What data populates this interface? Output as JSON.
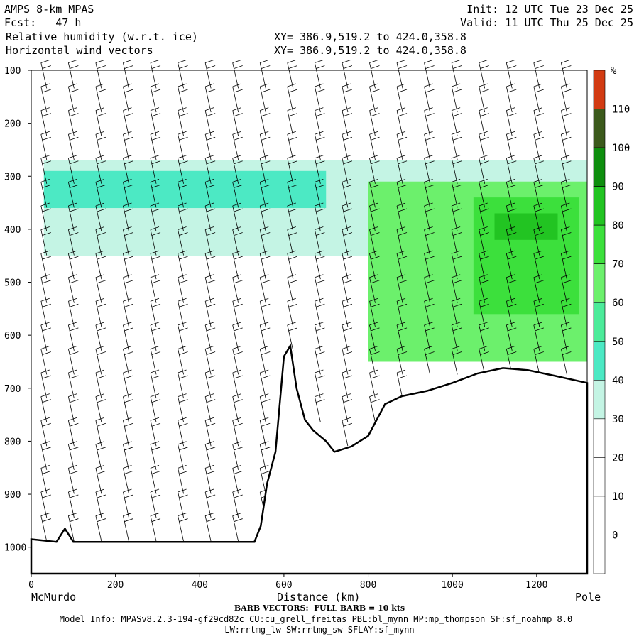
{
  "header": {
    "model": "AMPS 8-km MPAS",
    "fcst": "Fcst:   47 h",
    "field1": "Relative humidity (w.r.t. ice)",
    "field2": "Horizontal wind vectors",
    "xy1": "XY= 386.9,519.2 to 424.0,358.8",
    "xy2": "XY= 386.9,519.2 to 424.0,358.8",
    "init": "Init: 12 UTC Tue 23 Dec 25",
    "valid": "Valid: 11 UTC Thu 25 Dec 25"
  },
  "footer": {
    "barb_note": "BARB VECTORS:  FULL BARB = 10 kts",
    "model_info": "Model Info: MPASv8.2.3-194-gf29cd82c CU:cu_grell_freitas PBL:bl_mynn MP:mp_thompson SF:sf_noahmp 8.0",
    "model_info2": "LW:rrtmg_lw SW:rrtmg_sw SFLAY:sf_mynn"
  },
  "colors": {
    "c0": "#ffffff",
    "c30": "#c4f4e4",
    "c40": "#4ce9c4",
    "c50": "#4ceb9a",
    "c60": "#6cf06c",
    "c70": "#3ce03c",
    "c80": "#22c422",
    "c90": "#0e8e0e",
    "c100": "#0a5a0a",
    "c110": "#3c5a1c",
    "c120": "#d23b12"
  },
  "chart_data": {
    "type": "heatmap",
    "xlabel": "Distance (km)",
    "x_left_label": "McMurdo",
    "x_right_label": "Pole",
    "xlim": [
      0,
      1320
    ],
    "ylim": [
      1050,
      100
    ],
    "xticks": [
      0,
      200,
      400,
      600,
      800,
      1000,
      1200
    ],
    "yticks": [
      100,
      200,
      300,
      400,
      500,
      600,
      700,
      800,
      900,
      1000
    ],
    "colorbar": {
      "unit": "%",
      "levels": [
        0,
        10,
        20,
        30,
        40,
        50,
        60,
        70,
        80,
        90,
        100,
        110
      ],
      "colors": [
        "#ffffff",
        "#ffffff",
        "#ffffff",
        "#ffffff",
        "#c4f4e4",
        "#4ce9c4",
        "#4ceb9a",
        "#6cf06c",
        "#3ce03c",
        "#22c422",
        "#0e8e0e",
        "#3c5a1c",
        "#d23b12"
      ]
    },
    "terrain": [
      [
        0,
        985
      ],
      [
        60,
        990
      ],
      [
        80,
        965
      ],
      [
        100,
        990
      ],
      [
        530,
        990
      ],
      [
        545,
        960
      ],
      [
        560,
        880
      ],
      [
        580,
        820
      ],
      [
        600,
        640
      ],
      [
        615,
        620
      ],
      [
        630,
        700
      ],
      [
        650,
        760
      ],
      [
        670,
        780
      ],
      [
        700,
        800
      ],
      [
        720,
        820
      ],
      [
        760,
        810
      ],
      [
        800,
        790
      ],
      [
        840,
        730
      ],
      [
        880,
        715
      ],
      [
        940,
        705
      ],
      [
        1000,
        690
      ],
      [
        1060,
        672
      ],
      [
        1120,
        662
      ],
      [
        1180,
        666
      ],
      [
        1240,
        676
      ],
      [
        1320,
        690
      ]
    ],
    "humid_bands": [
      {
        "x0": 30,
        "x1": 1320,
        "p0": 270,
        "p1": 450,
        "level": 30
      },
      {
        "x0": 30,
        "x1": 700,
        "p0": 290,
        "p1": 360,
        "level": 40
      },
      {
        "x0": 800,
        "x1": 1320,
        "p0": 310,
        "p1": 650,
        "level": 60
      },
      {
        "x0": 1050,
        "x1": 1300,
        "p0": 340,
        "p1": 560,
        "level": 70
      },
      {
        "x0": 1100,
        "x1": 1250,
        "p0": 370,
        "p1": 420,
        "level": 80
      }
    ]
  }
}
